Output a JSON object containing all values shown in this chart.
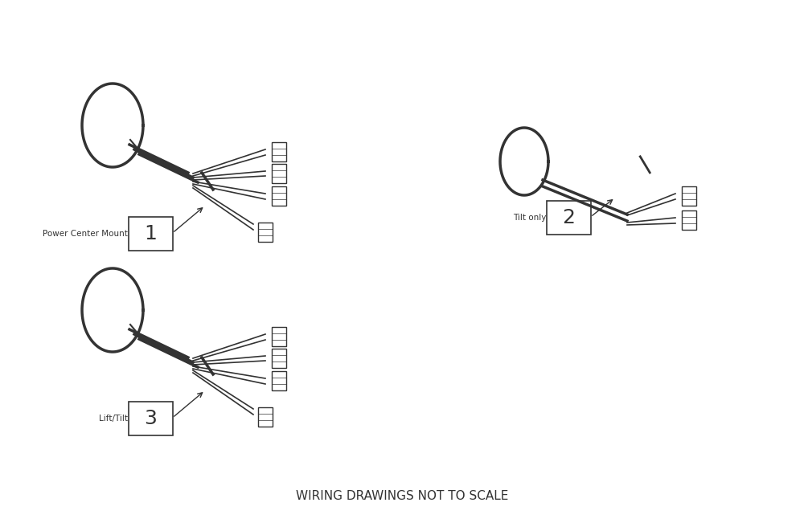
{
  "title": "WIRING DRAWINGS NOT TO SCALE",
  "title_fontsize": 11,
  "background_color": "#ffffff",
  "line_color": "#333333",
  "label1": "Power Center Mount",
  "label2": "Tilt only",
  "label3": "Lift/Tilt",
  "num1": "1",
  "num2": "2",
  "num3": "3"
}
